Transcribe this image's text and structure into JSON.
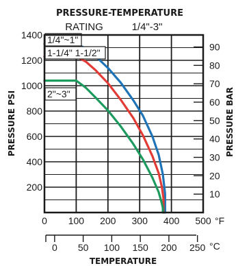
{
  "chart_data": {
    "type": "line",
    "title": "PRESSURE-TEMPERATURE",
    "subtitle_label": "RATING",
    "subtitle_sizes": "1/4\"-3\"",
    "xlabel": "TEMPERATURE",
    "ylabel_left": "PRESSURE PSI",
    "ylabel_right": "PRESSURE BAR",
    "x_unit_f": "°F",
    "x_unit_c": "°C",
    "x_ticks_f": [
      "0",
      "100",
      "200",
      "300",
      "400",
      "500"
    ],
    "x_ticks_c": [
      "0",
      "50",
      "100",
      "150",
      "200",
      "250"
    ],
    "y_ticks_psi": [
      "200",
      "400",
      "600",
      "800",
      "1000",
      "1200",
      "1400"
    ],
    "y_ticks_bar": [
      "10",
      "20",
      "30",
      "40",
      "50",
      "60",
      "70",
      "80",
      "90"
    ],
    "xlim": [
      0,
      500
    ],
    "ylim": [
      0,
      1400
    ],
    "grid": true,
    "series": [
      {
        "name": "1/4\"~1\"",
        "color": "#1f73b7",
        "x": [
          0,
          100,
          130,
          160,
          200,
          240,
          280,
          310,
          340,
          360,
          373,
          380,
          380
        ],
        "y": [
          1330,
          1330,
          1295,
          1235,
          1140,
          1025,
          885,
          765,
          600,
          455,
          300,
          150,
          0
        ]
      },
      {
        "name": "1-1/4\" 1-1/2\"",
        "color": "#e23b35",
        "x": [
          0,
          100,
          130,
          160,
          200,
          240,
          280,
          310,
          340,
          360,
          370,
          375,
          375
        ],
        "y": [
          1230,
          1230,
          1190,
          1125,
          1020,
          890,
          745,
          610,
          445,
          310,
          200,
          110,
          0
        ]
      },
      {
        "name": "2\"~3\"",
        "color": "#1d9a5e",
        "x": [
          0,
          100,
          130,
          160,
          200,
          240,
          280,
          310,
          340,
          360,
          370,
          373,
          373
        ],
        "y": [
          1040,
          1040,
          985,
          910,
          805,
          680,
          540,
          420,
          275,
          160,
          70,
          35,
          0
        ]
      }
    ]
  }
}
